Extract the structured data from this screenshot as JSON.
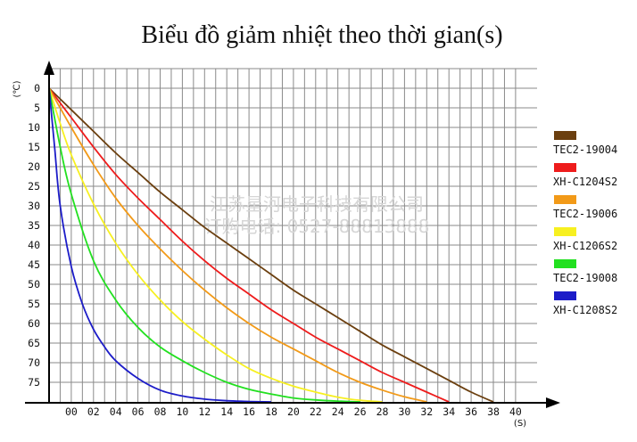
{
  "chart_data": {
    "type": "line",
    "title": "Biểu đồ giảm nhiệt theo thời gian(s)",
    "xlabel": "(S)",
    "ylabel": "(℃)",
    "xlim": [
      0,
      42
    ],
    "ylim": [
      0,
      80
    ],
    "y_inverted": true,
    "grid": true,
    "legend_position": "right",
    "x_tick_labels": [
      "00",
      "02",
      "04",
      "06",
      "08",
      "10",
      "12",
      "14",
      "16",
      "18",
      "20",
      "22",
      "24",
      "26",
      "28",
      "30",
      "32",
      "34",
      "36",
      "38",
      "40"
    ],
    "y_tick_labels": [
      "0",
      "5",
      "10",
      "15",
      "20",
      "25",
      "30",
      "35",
      "40",
      "45",
      "50",
      "55",
      "60",
      "65",
      "70",
      "75"
    ],
    "series": [
      {
        "name": "TEC2-19004",
        "color": "#6b3f0f",
        "x": [
          0,
          2,
          4,
          6,
          8,
          10,
          12,
          14,
          16,
          18,
          20,
          22,
          24,
          26,
          28,
          30,
          32,
          34,
          36,
          38,
          40
        ],
        "y": [
          0,
          5.5,
          11,
          16.5,
          21.5,
          26.5,
          31,
          35.5,
          39.5,
          43.5,
          47.5,
          51.5,
          55,
          58.5,
          62,
          65.5,
          68.5,
          71.5,
          74.5,
          77.5,
          80
        ]
      },
      {
        "name": "XH-C1204S2",
        "color": "#ee1c1c",
        "x": [
          0,
          2,
          4,
          6,
          8,
          10,
          12,
          14,
          16,
          18,
          20,
          22,
          24,
          26,
          28,
          30,
          32,
          34,
          36
        ],
        "y": [
          0,
          7.5,
          15,
          22,
          28,
          33.5,
          39,
          44,
          48.5,
          52.5,
          56.5,
          60,
          63.5,
          66.5,
          69.5,
          72.5,
          75,
          77.5,
          80
        ]
      },
      {
        "name": "TEC2-19006",
        "color": "#f29a18",
        "x": [
          0,
          2,
          4,
          6,
          8,
          10,
          12,
          14,
          16,
          18,
          20,
          22,
          24,
          26,
          28,
          30,
          32,
          34
        ],
        "y": [
          0,
          10,
          19.5,
          28,
          35,
          41,
          46.5,
          51.5,
          56,
          60,
          63.5,
          66.5,
          69.5,
          72.5,
          75,
          77,
          78.7,
          80
        ]
      },
      {
        "name": "XH-C1206S2",
        "color": "#f7f020",
        "x": [
          0,
          1,
          2,
          4,
          6,
          8,
          10,
          12,
          14,
          16,
          18,
          20,
          22,
          24,
          26,
          28,
          30
        ],
        "y": [
          0,
          9,
          17,
          29.5,
          39.5,
          47.5,
          54,
          59.5,
          64,
          68,
          71.5,
          74,
          76,
          77.5,
          78.8,
          79.6,
          80
        ]
      },
      {
        "name": "TEC2-19008",
        "color": "#22e020",
        "x": [
          0,
          1,
          2,
          4,
          6,
          8,
          10,
          12,
          14,
          16,
          18,
          20,
          22,
          24,
          26,
          28
        ],
        "y": [
          0,
          15,
          27,
          44,
          54,
          61,
          66,
          69.5,
          72.5,
          75,
          76.8,
          78,
          79,
          79.5,
          79.8,
          80
        ]
      },
      {
        "name": "XH-C1208S2",
        "color": "#1c1cc8",
        "x": [
          0,
          0.5,
          1,
          2,
          3,
          4,
          5,
          6,
          8,
          10,
          12,
          14,
          16,
          18,
          20
        ],
        "y": [
          0,
          15,
          30,
          45.5,
          55,
          61.5,
          66,
          69.5,
          74,
          77,
          78.5,
          79.3,
          79.7,
          79.9,
          80
        ]
      }
    ]
  },
  "watermark": {
    "line1": "江苏星河电子科技有限公司",
    "line2": "订购电话: 0527-88813888"
  }
}
